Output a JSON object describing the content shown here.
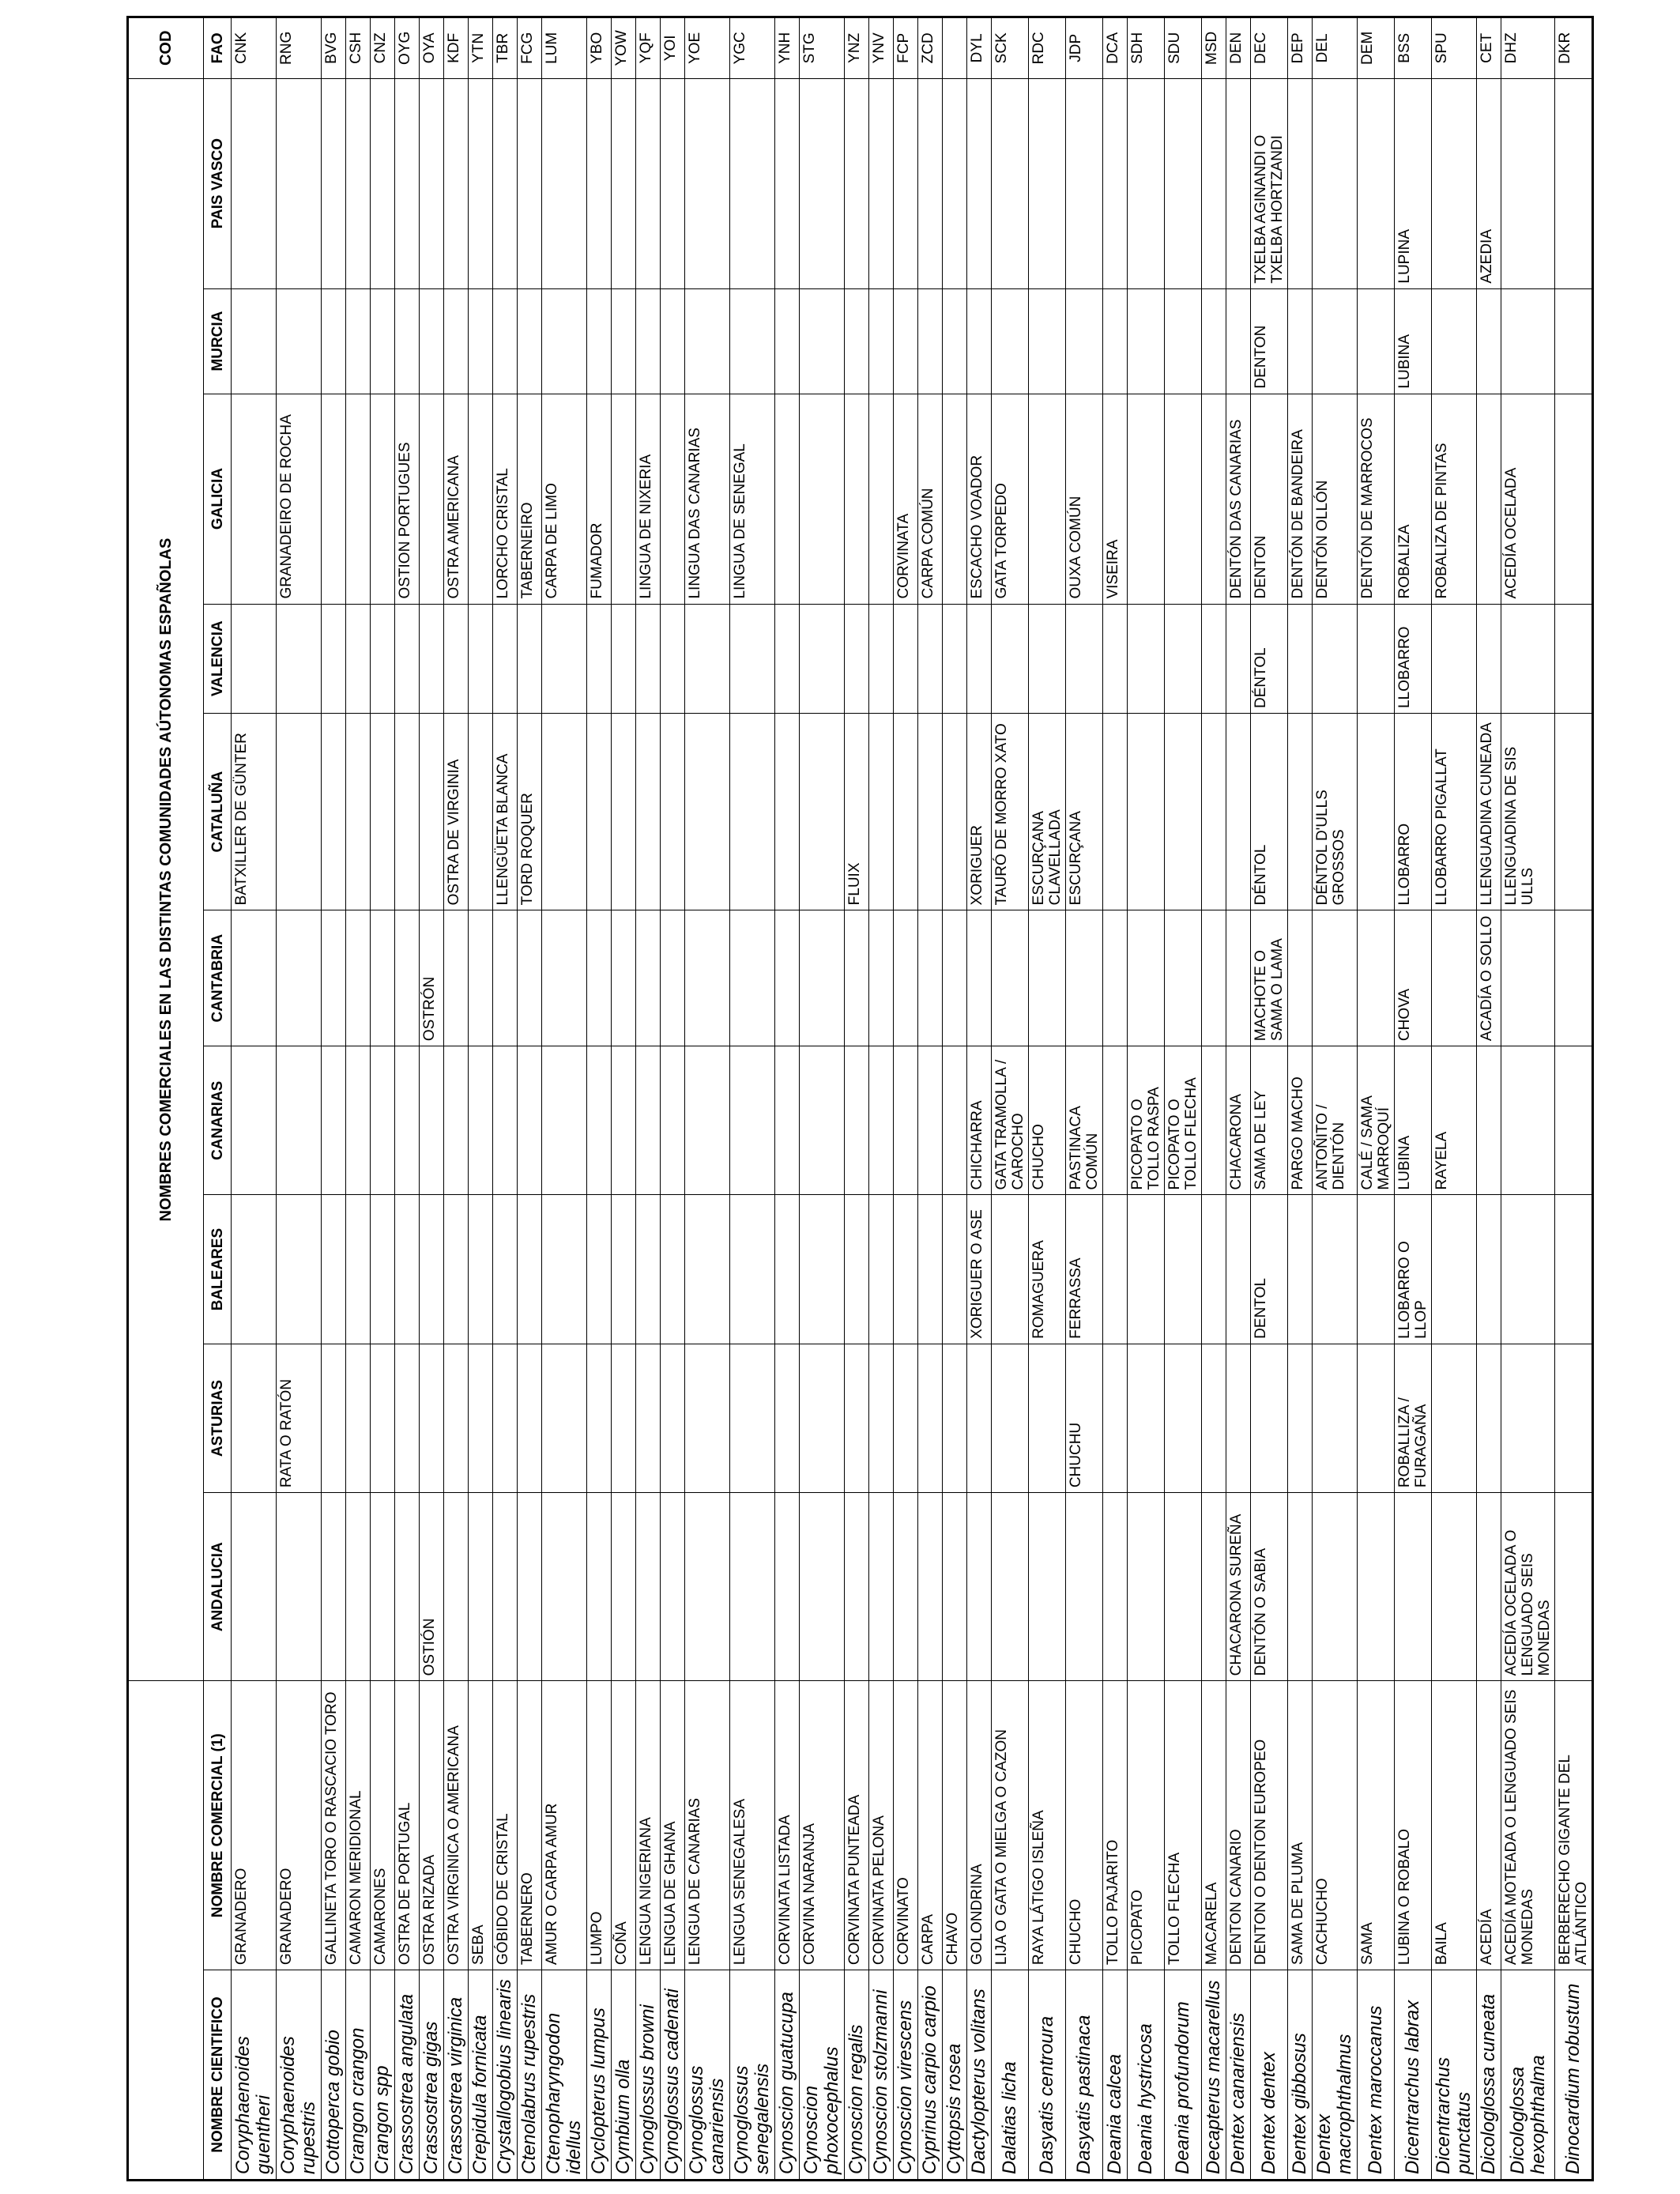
{
  "header": {
    "group_title": "NOMBRES COMERCIALES EN LAS DISTINTAS COMUNIDADES AÚTONOMAS ESPAÑOLAS",
    "cod_title": "COD",
    "columns": {
      "sci": "NOMBRE CIENTIFICO",
      "common": "NOMBRE COMERCIAL (1)",
      "andalucia": "ANDALUCIA",
      "asturias": "ASTURIAS",
      "baleares": "BALEARES",
      "canarias": "CANARIAS",
      "cantabria": "CANTABRIA",
      "cataluna": "CATALUÑA",
      "valencia": "VALENCIA",
      "galicia": "GALICIA",
      "murcia": "MURCIA",
      "pais_vasco": "PAIS VASCO",
      "fao": "FAO"
    }
  },
  "rows": [
    {
      "sci": "Coryphaenoides guentheri",
      "common": "GRANADERO",
      "andalucia": "",
      "asturias": "",
      "baleares": "",
      "canarias": "",
      "cantabria": "",
      "cataluna": "BATXILLER DE GÜNTER",
      "valencia": "",
      "galicia": "",
      "murcia": "",
      "pais_vasco": "",
      "fao": "CNK"
    },
    {
      "sci": "Coryphaenoides rupestris",
      "common": "GRANADERO",
      "andalucia": "",
      "asturias": "RATA O RATÓN",
      "baleares": "",
      "canarias": "",
      "cantabria": "",
      "cataluna": "",
      "valencia": "",
      "galicia": "GRANADEIRO DE ROCHA",
      "murcia": "",
      "pais_vasco": "",
      "fao": "RNG"
    },
    {
      "sci": "Cottoperca gobio",
      "common": "GALLINETA TORO O RASCACIO TORO",
      "andalucia": "",
      "asturias": "",
      "baleares": "",
      "canarias": "",
      "cantabria": "",
      "cataluna": "",
      "valencia": "",
      "galicia": "",
      "murcia": "",
      "pais_vasco": "",
      "fao": "BVG"
    },
    {
      "sci": "Crangon crangon",
      "common": "CAMARON MERIDIONAL",
      "andalucia": "",
      "asturias": "",
      "baleares": "",
      "canarias": "",
      "cantabria": "",
      "cataluna": "",
      "valencia": "",
      "galicia": "",
      "murcia": "",
      "pais_vasco": "",
      "fao": "CSH"
    },
    {
      "sci": "Crangon  spp",
      "common": "CAMARONES",
      "andalucia": "",
      "asturias": "",
      "baleares": "",
      "canarias": "",
      "cantabria": "",
      "cataluna": "",
      "valencia": "",
      "galicia": "",
      "murcia": "",
      "pais_vasco": "",
      "fao": "CNZ"
    },
    {
      "sci": "Crassostrea angulata",
      "common": "OSTRA DE PORTUGAL",
      "andalucia": "",
      "asturias": "",
      "baleares": "",
      "canarias": "",
      "cantabria": "",
      "cataluna": "",
      "valencia": "",
      "galicia": "OSTION PORTUGUES",
      "murcia": "",
      "pais_vasco": "",
      "fao": "OYG"
    },
    {
      "sci": "Crassostrea gigas",
      "common": "OSTRA RIZADA",
      "andalucia": "OSTIÓN",
      "asturias": "",
      "baleares": "",
      "canarias": "",
      "cantabria": "OSTRÓN",
      "cataluna": "",
      "valencia": "",
      "galicia": "",
      "murcia": "",
      "pais_vasco": "",
      "fao": "OYA"
    },
    {
      "sci": "Crassostrea virginica",
      "common": "OSTRA VIRGINICA O AMERICANA",
      "andalucia": "",
      "asturias": "",
      "baleares": "",
      "canarias": "",
      "cantabria": "",
      "cataluna": "OSTRA DE VIRGINIA",
      "valencia": "",
      "galicia": "OSTRA AMERICANA",
      "murcia": "",
      "pais_vasco": "",
      "fao": "KDF"
    },
    {
      "sci": "Crepidula fornicata",
      "common": "SEBA",
      "andalucia": "",
      "asturias": "",
      "baleares": "",
      "canarias": "",
      "cantabria": "",
      "cataluna": "",
      "valencia": "",
      "galicia": "",
      "murcia": "",
      "pais_vasco": "",
      "fao": "YTN"
    },
    {
      "sci": "Crystallogobius linearis",
      "common": "GÓBIDO DE CRISTAL",
      "andalucia": "",
      "asturias": "",
      "baleares": "",
      "canarias": "",
      "cantabria": "",
      "cataluna": "LLENGÜETA BLANCA",
      "valencia": "",
      "galicia": "LORCHO CRISTAL",
      "murcia": "",
      "pais_vasco": "",
      "fao": "TBR"
    },
    {
      "sci": "Ctenolabrus rupestris",
      "common": "TABERNERO",
      "andalucia": "",
      "asturias": "",
      "baleares": "",
      "canarias": "",
      "cantabria": "",
      "cataluna": "TORD ROQUER",
      "valencia": "",
      "galicia": "TABERNEIRO",
      "murcia": "",
      "pais_vasco": "",
      "fao": "FCG"
    },
    {
      "sci": "Ctenopharyngodon idellus",
      "common": "AMUR O CARPA AMUR",
      "andalucia": "",
      "asturias": "",
      "baleares": "",
      "canarias": "",
      "cantabria": "",
      "cataluna": "",
      "valencia": "",
      "galicia": "CARPA DE LIMO",
      "murcia": "",
      "pais_vasco": "",
      "fao": "LUM"
    },
    {
      "sci": "Cyclopterus lumpus",
      "common": "LUMPO",
      "andalucia": "",
      "asturias": "",
      "baleares": "",
      "canarias": "",
      "cantabria": "",
      "cataluna": "",
      "valencia": "",
      "galicia": "FUMADOR",
      "murcia": "",
      "pais_vasco": "",
      "fao": "YBO"
    },
    {
      "sci": "Cymbium olla",
      "common": "COÑA",
      "andalucia": "",
      "asturias": "",
      "baleares": "",
      "canarias": "",
      "cantabria": "",
      "cataluna": "",
      "valencia": "",
      "galicia": "",
      "murcia": "",
      "pais_vasco": "",
      "fao": "YOW"
    },
    {
      "sci": "Cynoglossus browni",
      "common": "LENGUA NIGERIANA",
      "andalucia": "",
      "asturias": "",
      "baleares": "",
      "canarias": "",
      "cantabria": "",
      "cataluna": "",
      "valencia": "",
      "galicia": "LINGUA DE NIXERIA",
      "murcia": "",
      "pais_vasco": "",
      "fao": "YQF"
    },
    {
      "sci": "Cynoglossus cadenati",
      "common": "LENGUA DE GHANA",
      "andalucia": "",
      "asturias": "",
      "baleares": "",
      "canarias": "",
      "cantabria": "",
      "cataluna": "",
      "valencia": "",
      "galicia": "",
      "murcia": "",
      "pais_vasco": "",
      "fao": "YOI"
    },
    {
      "sci": "Cynoglossus canariensis",
      "common": "LENGUA DE CANARIAS",
      "andalucia": "",
      "asturias": "",
      "baleares": "",
      "canarias": "",
      "cantabria": "",
      "cataluna": "",
      "valencia": "",
      "galicia": "LINGUA DAS CANARIAS",
      "murcia": "",
      "pais_vasco": "",
      "fao": "YOE"
    },
    {
      "sci": "Cynoglossus senegalensis",
      "common": "LENGUA SENEGALESA",
      "andalucia": "",
      "asturias": "",
      "baleares": "",
      "canarias": "",
      "cantabria": "",
      "cataluna": "",
      "valencia": "",
      "galicia": "LINGUA DE SENEGAL",
      "murcia": "",
      "pais_vasco": "",
      "fao": "YGC"
    },
    {
      "sci": "Cynoscion guatucupa",
      "common": "CORVINATA LISTADA",
      "andalucia": "",
      "asturias": "",
      "baleares": "",
      "canarias": "",
      "cantabria": "",
      "cataluna": "",
      "valencia": "",
      "galicia": "",
      "murcia": "",
      "pais_vasco": "",
      "fao": "YNH"
    },
    {
      "sci": "Cynoscion phoxocephalus",
      "common": "CORVINA NARANJA",
      "andalucia": "",
      "asturias": "",
      "baleares": "",
      "canarias": "",
      "cantabria": "",
      "cataluna": "",
      "valencia": "",
      "galicia": "",
      "murcia": "",
      "pais_vasco": "",
      "fao": "STG"
    },
    {
      "sci": "Cynoscion regalis",
      "common": "CORVINATA PUNTEADA",
      "andalucia": "",
      "asturias": "",
      "baleares": "",
      "canarias": "",
      "cantabria": "",
      "cataluna": "FLUIX",
      "valencia": "",
      "galicia": "",
      "murcia": "",
      "pais_vasco": "",
      "fao": "YNZ"
    },
    {
      "sci": "Cynoscion stolzmanni",
      "common": "CORVINATA PELONA",
      "andalucia": "",
      "asturias": "",
      "baleares": "",
      "canarias": "",
      "cantabria": "",
      "cataluna": "",
      "valencia": "",
      "galicia": "",
      "murcia": "",
      "pais_vasco": "",
      "fao": "YNV"
    },
    {
      "sci": "Cynoscion virescens",
      "common": "CORVINATO",
      "andalucia": "",
      "asturias": "",
      "baleares": "",
      "canarias": "",
      "cantabria": "",
      "cataluna": "",
      "valencia": "",
      "galicia": "CORVINATA",
      "murcia": "",
      "pais_vasco": "",
      "fao": "FCP"
    },
    {
      "sci": "Cyprinus carpio carpio",
      "common": "CARPA",
      "andalucia": "",
      "asturias": "",
      "baleares": "",
      "canarias": "",
      "cantabria": "",
      "cataluna": "",
      "valencia": "",
      "galicia": "CARPA COMÚN",
      "murcia": "",
      "pais_vasco": "",
      "fao": "ZCD"
    },
    {
      "sci": "Cyttopsis rosea",
      "common": "CHAVO",
      "andalucia": "",
      "asturias": "",
      "baleares": "",
      "canarias": "",
      "cantabria": "",
      "cataluna": "",
      "valencia": "",
      "galicia": "",
      "murcia": "",
      "pais_vasco": "",
      "fao": ""
    },
    {
      "sci": "Dactylopterus volitans",
      "common": "GOLONDRINA",
      "andalucia": "",
      "asturias": "",
      "baleares": "XORIGUER O ASE",
      "canarias": "CHICHARRA",
      "cantabria": "",
      "cataluna": "XORIGUER",
      "valencia": "",
      "galicia": "ESCACHO VOADOR",
      "murcia": "",
      "pais_vasco": "",
      "fao": "DYL"
    },
    {
      "sci": "Dalatias licha",
      "common": "LIJA O GATA O MIELGA O CAZON",
      "andalucia": "",
      "asturias": "",
      "baleares": "",
      "canarias": "GATA TRAMOLLA / CAROCHO",
      "cantabria": "",
      "cataluna": "TAURÓ DE MORRO XATO",
      "valencia": "",
      "galicia": "GATA TORPEDO",
      "murcia": "",
      "pais_vasco": "",
      "fao": "SCK"
    },
    {
      "sci": "Dasyatis centroura",
      "common": "RAYA LÁTIGO ISLEÑA",
      "andalucia": "",
      "asturias": "",
      "baleares": "ROMAGUERA",
      "canarias": "CHUCHO",
      "cantabria": "",
      "cataluna": "ESCURÇANA CLAVELLADA",
      "valencia": "",
      "galicia": "",
      "murcia": "",
      "pais_vasco": "",
      "fao": "RDC"
    },
    {
      "sci": "Dasyatis pastinaca",
      "common": "CHUCHO",
      "andalucia": "",
      "asturias": "CHUCHU",
      "baleares": "FERRASSA",
      "canarias": "PASTINACA COMÚN",
      "cantabria": "",
      "cataluna": "ESCURÇANA",
      "valencia": "",
      "galicia": "OUXA COMÚN",
      "murcia": "",
      "pais_vasco": "",
      "fao": "JDP"
    },
    {
      "sci": "Deania calcea",
      "common": "TOLLO PAJARITO",
      "andalucia": "",
      "asturias": "",
      "baleares": "",
      "canarias": "",
      "cantabria": "",
      "cataluna": "",
      "valencia": "",
      "galicia": "VISEIRA",
      "murcia": "",
      "pais_vasco": "",
      "fao": "DCA"
    },
    {
      "sci": "Deania hystricosa",
      "common": "PICOPATO",
      "andalucia": "",
      "asturias": "",
      "baleares": "",
      "canarias": "PICOPATO O TOLLO RASPA",
      "cantabria": "",
      "cataluna": "",
      "valencia": "",
      "galicia": "",
      "murcia": "",
      "pais_vasco": "",
      "fao": "SDH"
    },
    {
      "sci": "Deania profundorum",
      "common": "TOLLO FLECHA",
      "andalucia": "",
      "asturias": "",
      "baleares": "",
      "canarias": "PICOPATO O TOLLO FLECHA",
      "cantabria": "",
      "cataluna": "",
      "valencia": "",
      "galicia": "",
      "murcia": "",
      "pais_vasco": "",
      "fao": "SDU"
    },
    {
      "sci": "Decapterus macarellus",
      "common": "MACARELA",
      "andalucia": "",
      "asturias": "",
      "baleares": "",
      "canarias": "",
      "cantabria": "",
      "cataluna": "",
      "valencia": "",
      "galicia": "",
      "murcia": "",
      "pais_vasco": "",
      "fao": "MSD"
    },
    {
      "sci": "Dentex canariensis",
      "common": "DENTON CANARIO",
      "andalucia": "CHACARONA SUREÑA",
      "asturias": "",
      "baleares": "",
      "canarias": "CHACARONA",
      "cantabria": "",
      "cataluna": "",
      "valencia": "",
      "galicia": "DENTÓN DAS CANARIAS",
      "murcia": "",
      "pais_vasco": "",
      "fao": "DEN"
    },
    {
      "sci": "Dentex dentex",
      "common": "DENTON  O DENTON EUROPEO",
      "andalucia": "DENTÓN O SABIA",
      "asturias": "",
      "baleares": "DENTOL",
      "canarias": "SAMA DE LEY",
      "cantabria": "MACHOTE O SAMA O LAMA",
      "cataluna": "DÉNTOL",
      "valencia": "DÉNTOL",
      "galicia": "DENTON",
      "murcia": "DENTON",
      "pais_vasco": "TXELBA AGINANDI O TXELBA HORTZANDI",
      "fao": "DEC"
    },
    {
      "sci": "Dentex gibbosus",
      "common": "SAMA DE PLUMA",
      "andalucia": "",
      "asturias": "",
      "baleares": "",
      "canarias": "PARGO MACHO",
      "cantabria": "",
      "cataluna": "",
      "valencia": "",
      "galicia": "DENTÓN DE BANDEIRA",
      "murcia": "",
      "pais_vasco": "",
      "fao": "DEP"
    },
    {
      "sci": "Dentex macrophthalmus",
      "common": "CACHUCHO",
      "andalucia": "",
      "asturias": "",
      "baleares": "",
      "canarias": "ANTOÑITO / DIENTÓN",
      "cantabria": "",
      "cataluna": "DÉNTOL D'ULLS GROSSOS",
      "valencia": "",
      "galicia": "DENTÓN OLLÓN",
      "murcia": "",
      "pais_vasco": "",
      "fao": "DEL"
    },
    {
      "sci": "Dentex maroccanus",
      "common": "SAMA",
      "andalucia": "",
      "asturias": "",
      "baleares": "",
      "canarias": "CALÉ / SAMA MARROQUÍ",
      "cantabria": "",
      "cataluna": "",
      "valencia": "",
      "galicia": "DENTÓN DE MARROCOS",
      "murcia": "",
      "pais_vasco": "",
      "fao": "DEM"
    },
    {
      "sci": "Dicentrarchus labrax",
      "common": "LUBINA O ROBALO",
      "andalucia": "",
      "asturias": "ROBALLIZA / FURAGAÑA",
      "baleares": "LLOBARRO O LLOP",
      "canarias": "LUBINA",
      "cantabria": "CHOVA",
      "cataluna": "LLOBARRO",
      "valencia": "LLOBARRO",
      "galicia": "ROBALIZA",
      "murcia": "LUBINA",
      "pais_vasco": "LUPINA",
      "fao": "BSS"
    },
    {
      "sci": "Dicentrarchus punctatus",
      "common": "BAILA",
      "andalucia": "",
      "asturias": "",
      "baleares": "",
      "canarias": "RAYELA",
      "cantabria": "",
      "cataluna": "LLOBARRO PIGALLAT",
      "valencia": "",
      "galicia": "ROBALIZA DE PINTAS",
      "murcia": "",
      "pais_vasco": "",
      "fao": "SPU"
    },
    {
      "sci": "Dicologlossa cuneata",
      "common": "ACEDÍA",
      "andalucia": "",
      "asturias": "",
      "baleares": "",
      "canarias": "",
      "cantabria": "ACADÍA O SOLLO",
      "cataluna": "LLENGUADINA CUNEADA",
      "valencia": "",
      "galicia": "",
      "murcia": "",
      "pais_vasco": "AZEDIA",
      "fao": "CET"
    },
    {
      "sci": "Dicologlossa hexophthalma",
      "common": "ACEDÍA MOTEADA O LENGUADO SEIS MONEDAS",
      "andalucia": "ACEDÍA OCELADA O LENGUADO SEIS MONEDAS",
      "asturias": "",
      "baleares": "",
      "canarias": "",
      "cantabria": "",
      "cataluna": "LLENGUADINA DE SIS ULLS",
      "valencia": "",
      "galicia": "ACEDÍA OCELADA",
      "murcia": "",
      "pais_vasco": "",
      "fao": "DHZ"
    },
    {
      "sci": "Dinocardium robustum",
      "common": "BERBERECHO GIGANTE DEL ATLÁNTICO",
      "andalucia": "",
      "asturias": "",
      "baleares": "",
      "canarias": "",
      "cantabria": "",
      "cataluna": "",
      "valencia": "",
      "galicia": "",
      "murcia": "",
      "pais_vasco": "",
      "fao": "DKR"
    }
  ]
}
